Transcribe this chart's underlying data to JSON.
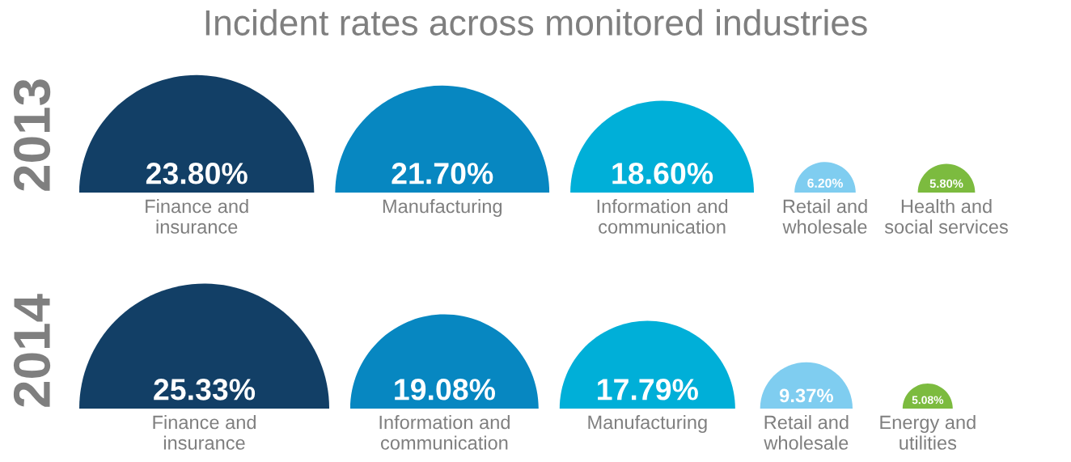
{
  "chart_data": [
    {
      "type": "other",
      "title": "Incident rates across monitored industries",
      "subtitle": "2013",
      "categories": [
        "Finance and\ninsurance",
        "Manufacturing",
        "Information and\ncommunication",
        "Retail and\nwholesale",
        "Health and\nsocial services"
      ],
      "values": [
        23.8,
        21.7,
        18.6,
        6.2,
        5.8
      ],
      "value_labels": [
        "23.80%",
        "21.70%",
        "18.60%",
        "6.20%",
        "5.80%"
      ],
      "colors": [
        "#123f66",
        "#0787c1",
        "#00afd8",
        "#7fcdf0",
        "#7cbb3f"
      ]
    },
    {
      "type": "other",
      "subtitle": "2014",
      "categories": [
        "Finance and\ninsurance",
        "Information and\ncommunication",
        "Manufacturing",
        "Retail and\nwholesale",
        "Energy and\nutilities"
      ],
      "values": [
        25.33,
        19.08,
        17.79,
        9.37,
        5.08
      ],
      "value_labels": [
        "25.33%",
        "19.08%",
        "17.79%",
        "9.37%",
        "5.08%"
      ],
      "colors": [
        "#123f66",
        "#0787c1",
        "#00afd8",
        "#7fcdf0",
        "#7cbb3f"
      ]
    }
  ]
}
